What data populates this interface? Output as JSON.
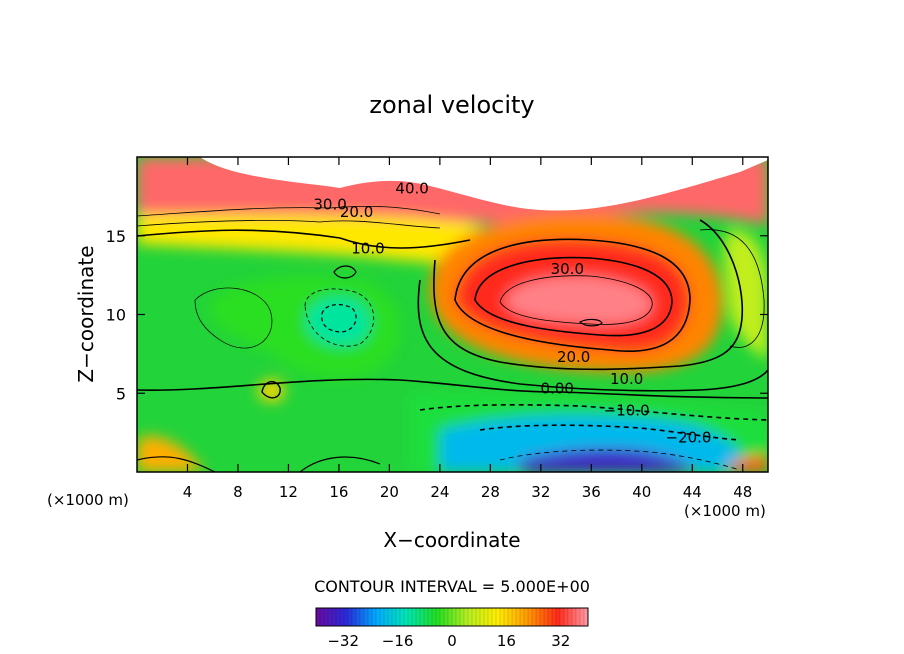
{
  "chart_data": {
    "type": "heatmap",
    "title": "zonal velocity",
    "xlabel": "X−coordinate",
    "ylabel": "Z−coordinate",
    "x_unit": "(×1000 m)",
    "x_unit_right": "(×1000 m)",
    "xlim": [
      0,
      50
    ],
    "ylim": [
      0,
      20
    ],
    "x_ticks": [
      4,
      8,
      12,
      16,
      20,
      24,
      28,
      32,
      36,
      40,
      44,
      48
    ],
    "y_ticks": [
      5,
      10,
      15
    ],
    "contour_interval_text": "CONTOUR INTERVAL = 5.000E+00",
    "contour_interval": 5.0,
    "colorbar": {
      "min": -40,
      "max": 40,
      "ticks": [
        -32,
        -16,
        0,
        16,
        32
      ],
      "tick_labels": [
        "−32",
        "−16",
        "0",
        "16",
        "32"
      ],
      "colors": [
        "#6a0aa0",
        "#2a2ad8",
        "#00aaff",
        "#00e6b4",
        "#22dd22",
        "#b4ee22",
        "#ffee00",
        "#ff9a00",
        "#ff2a1a",
        "#ff9aa6"
      ]
    },
    "contour_labels": [
      {
        "text": "40.0",
        "x": 21.8,
        "z": 18.0
      },
      {
        "text": "30.0",
        "x": 15.3,
        "z": 17.0
      },
      {
        "text": "20.0",
        "x": 17.4,
        "z": 16.5
      },
      {
        "text": "10.0",
        "x": 18.3,
        "z": 14.2
      },
      {
        "text": "30.0",
        "x": 34.1,
        "z": 12.9
      },
      {
        "text": "20.0",
        "x": 34.6,
        "z": 7.3
      },
      {
        "text": "10.0",
        "x": 38.8,
        "z": 5.9
      },
      {
        "text": "0.00",
        "x": 33.3,
        "z": 5.3
      },
      {
        "text": "−10.0",
        "x": 38.8,
        "z": 3.9
      },
      {
        "text": "−20.0",
        "x": 43.7,
        "z": 2.2
      }
    ],
    "features": [
      {
        "name": "jet-core-max",
        "x": 35,
        "z": 10.5,
        "value": 40
      },
      {
        "name": "mid-depth-min",
        "x": 16.5,
        "z": 9.8,
        "value": -10
      },
      {
        "name": "bottom-min",
        "x": 37.5,
        "z": 1.2,
        "value": -35
      },
      {
        "name": "upper-layer-max",
        "x": 22,
        "z": 18,
        "value": 40
      }
    ]
  }
}
